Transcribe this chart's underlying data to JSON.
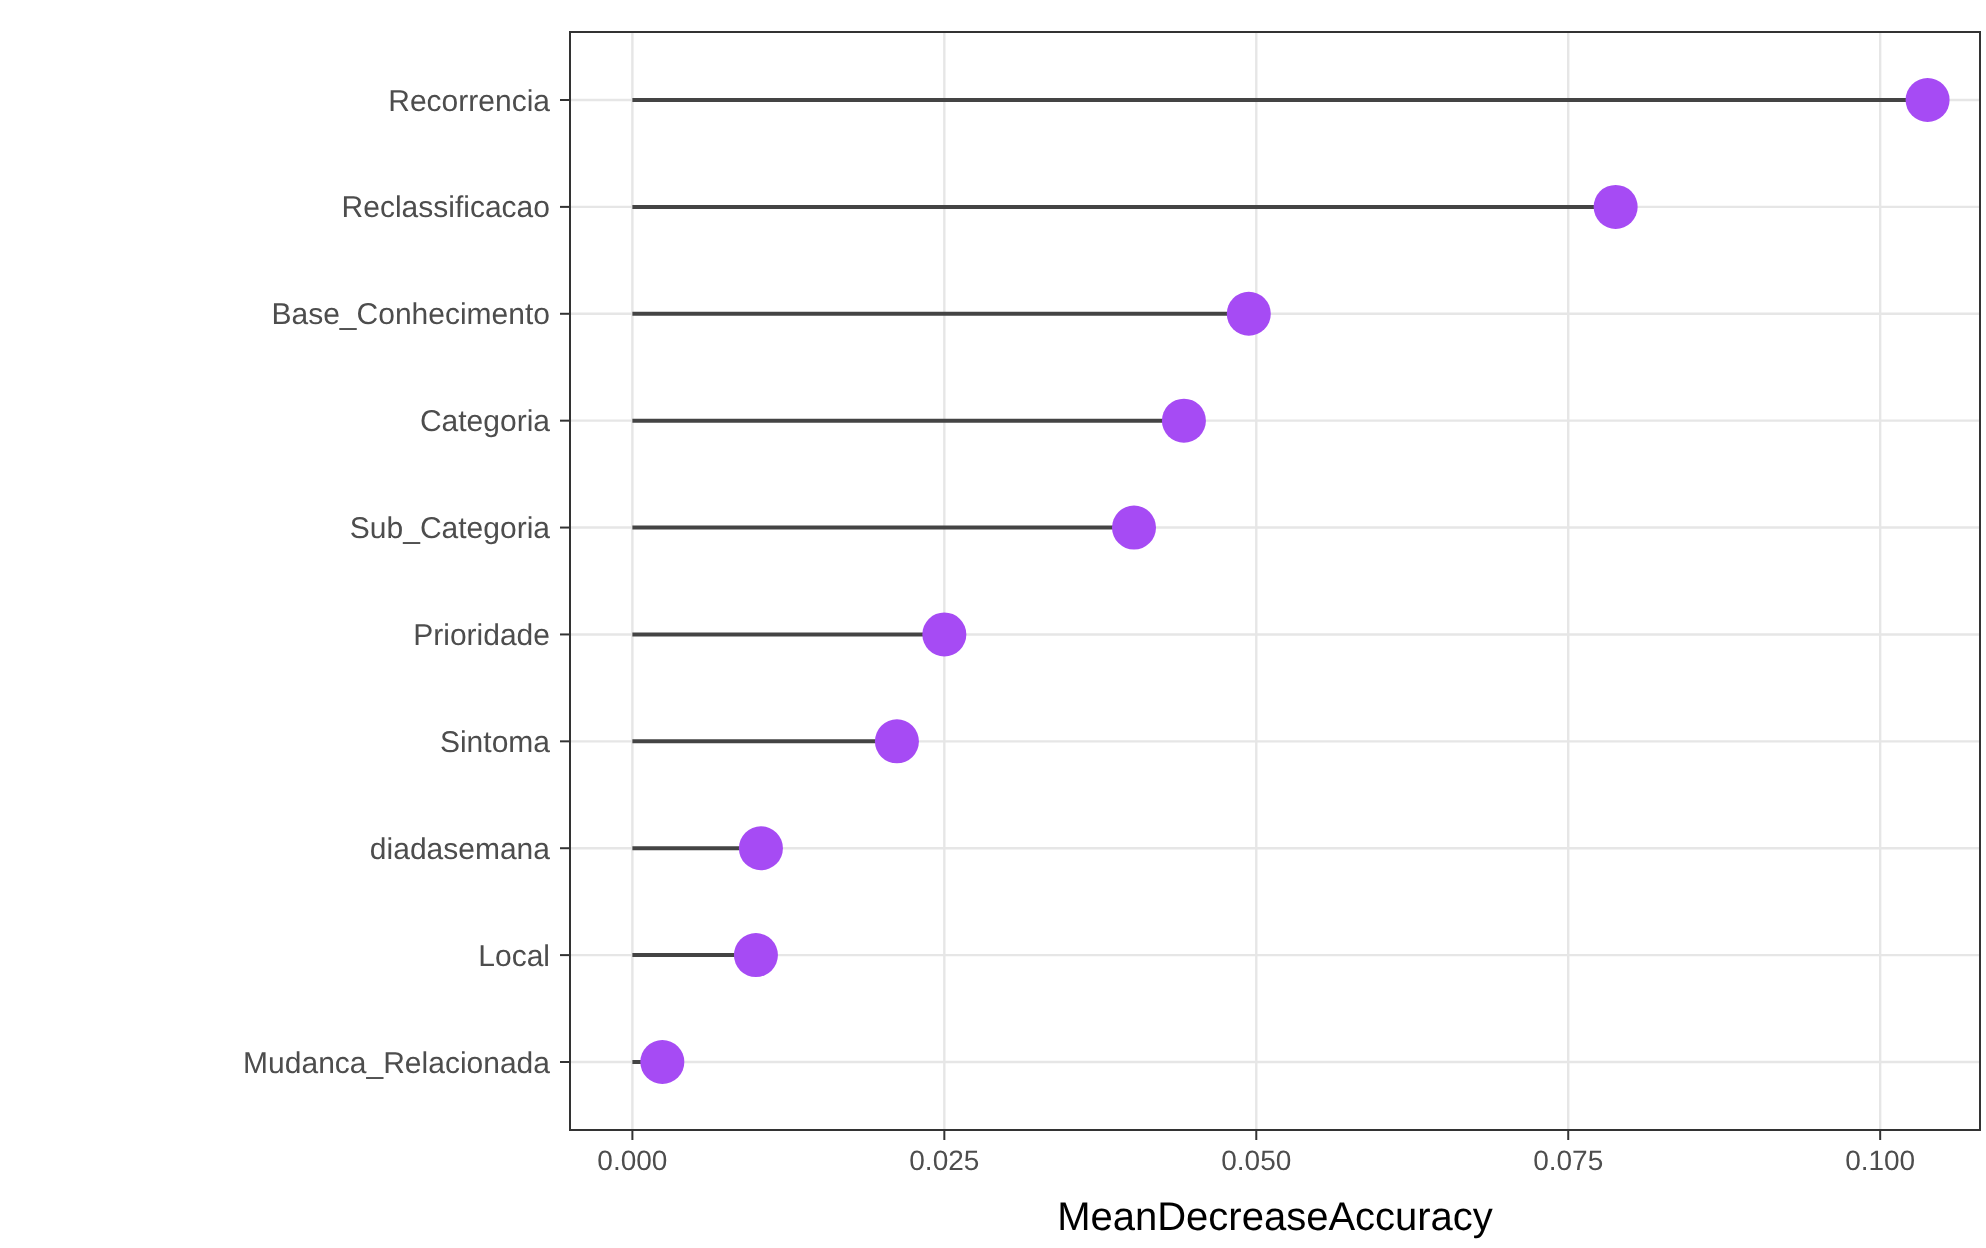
{
  "chart_data": {
    "type": "lollipop",
    "orientation": "horizontal",
    "xlabel": "MeanDecreaseAccuracy",
    "categories": [
      "Recorrencia",
      "Reclassificacao",
      "Base_Conhecimento",
      "Categoria",
      "Sub_Categoria",
      "Prioridade",
      "Sintoma",
      "diadasemana",
      "Local",
      "Mudanca_Relacionada"
    ],
    "values": [
      0.1038,
      0.0788,
      0.0494,
      0.0442,
      0.0402,
      0.025,
      0.0212,
      0.0103,
      0.0099,
      0.0024
    ],
    "color": "#a64bf4",
    "xlim": [
      -0.005,
      0.108
    ],
    "xticks": [
      {
        "value": 0,
        "label": "0.000"
      },
      {
        "value": 0.025,
        "label": "0.025"
      },
      {
        "value": 0.05,
        "label": "0.050"
      },
      {
        "value": 0.075,
        "label": "0.075"
      },
      {
        "value": 0.1,
        "label": "0.100"
      }
    ],
    "grid": true,
    "marker": "circle"
  }
}
